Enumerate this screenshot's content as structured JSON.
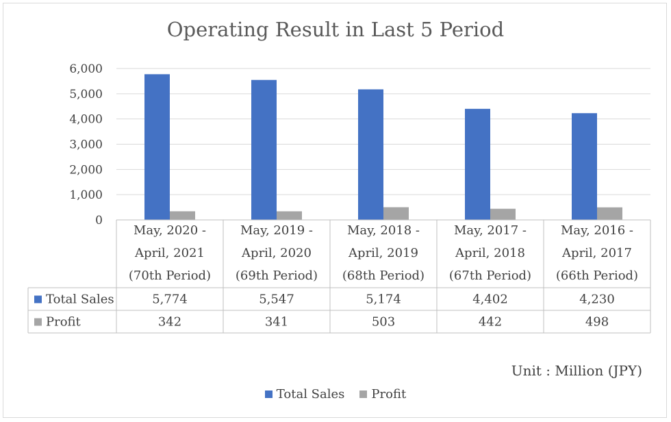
{
  "chart_data": {
    "type": "bar",
    "title": "Operating Result in Last 5 Period",
    "categories": [
      [
        "May, 2020 -",
        "April, 2021",
        "(70th Period)"
      ],
      [
        "May, 2019 -",
        "April, 2020",
        "(69th Period)"
      ],
      [
        "May, 2018 -",
        "April, 2019",
        "(68th Period)"
      ],
      [
        "May, 2017 -",
        "April, 2018",
        "(67th Period)"
      ],
      [
        "May, 2016 -",
        "April, 2017",
        "(66th Period)"
      ]
    ],
    "series": [
      {
        "name": "Total Sales",
        "color": "#4472c4",
        "values": [
          5774,
          5547,
          5174,
          4402,
          4230
        ],
        "labels": [
          "5,774",
          "5,547",
          "5,174",
          "4,402",
          "4,230"
        ]
      },
      {
        "name": "Profit",
        "color": "#a5a5a5",
        "values": [
          342,
          341,
          503,
          442,
          498
        ],
        "labels": [
          "342",
          "341",
          "503",
          "442",
          "498"
        ]
      }
    ],
    "ylim": [
      0,
      6000
    ],
    "yticks": [
      "0",
      "1,000",
      "2,000",
      "3,000",
      "4,000",
      "5,000",
      "6,000"
    ],
    "grid": true,
    "data_table": true,
    "legend": "bottom",
    "unit_note": "Unit : Million (JPY)"
  }
}
